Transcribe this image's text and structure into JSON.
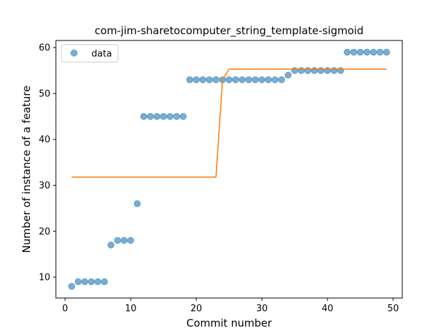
{
  "chart_data": {
    "type": "scatter",
    "title": "com-jim-sharetocomputer_string_template-sigmoid",
    "xlabel": "Commit number",
    "ylabel": "Number of instance of a feature",
    "xlim": [
      -1.4,
      51.4
    ],
    "ylim": [
      5.45,
      61.55
    ],
    "xticks": [
      0,
      10,
      20,
      30,
      40,
      50
    ],
    "yticks": [
      10,
      20,
      30,
      40,
      50,
      60
    ],
    "grid": false,
    "legend_position": "upper-left",
    "series": [
      {
        "name": "data",
        "kind": "scatter",
        "color": "#1f77b4",
        "alpha": 0.6,
        "x": [
          1,
          2,
          3,
          4,
          5,
          6,
          7,
          8,
          9,
          10,
          11,
          12,
          13,
          14,
          15,
          16,
          17,
          18,
          19,
          20,
          21,
          22,
          23,
          24,
          25,
          26,
          27,
          28,
          29,
          30,
          31,
          32,
          33,
          34,
          35,
          36,
          37,
          38,
          39,
          40,
          41,
          42,
          43,
          44,
          45,
          46,
          47,
          48,
          49
        ],
        "y": [
          8,
          9,
          9,
          9,
          9,
          9,
          17,
          18,
          18,
          18,
          26,
          45,
          45,
          45,
          45,
          45,
          45,
          45,
          53,
          53,
          53,
          53,
          53,
          53,
          53,
          53,
          53,
          53,
          53,
          53,
          53,
          53,
          53,
          54,
          55,
          55,
          55,
          55,
          55,
          55,
          55,
          55,
          59,
          59,
          59,
          59,
          59,
          59,
          59
        ]
      },
      {
        "kind": "line",
        "color": "#ff7f0e",
        "x": [
          1,
          2,
          3,
          4,
          5,
          6,
          7,
          8,
          9,
          10,
          11,
          12,
          13,
          14,
          15,
          16,
          17,
          18,
          19,
          20,
          21,
          22,
          23,
          24,
          25,
          26,
          27,
          28,
          29,
          30,
          31,
          32,
          33,
          34,
          35,
          36,
          37,
          38,
          39,
          40,
          41,
          42,
          43,
          44,
          45,
          46,
          47,
          48,
          49
        ],
        "y": [
          31.8,
          31.8,
          31.8,
          31.8,
          31.8,
          31.8,
          31.8,
          31.8,
          31.8,
          31.8,
          31.8,
          31.8,
          31.8,
          31.8,
          31.8,
          31.8,
          31.8,
          31.8,
          31.8,
          31.8,
          31.8,
          31.8,
          31.8,
          53.0,
          55.3,
          55.3,
          55.3,
          55.3,
          55.3,
          55.3,
          55.3,
          55.3,
          55.3,
          55.3,
          55.3,
          55.3,
          55.3,
          55.3,
          55.3,
          55.3,
          55.3,
          55.3,
          55.3,
          55.3,
          55.3,
          55.3,
          55.3,
          55.3,
          55.3
        ]
      }
    ]
  }
}
